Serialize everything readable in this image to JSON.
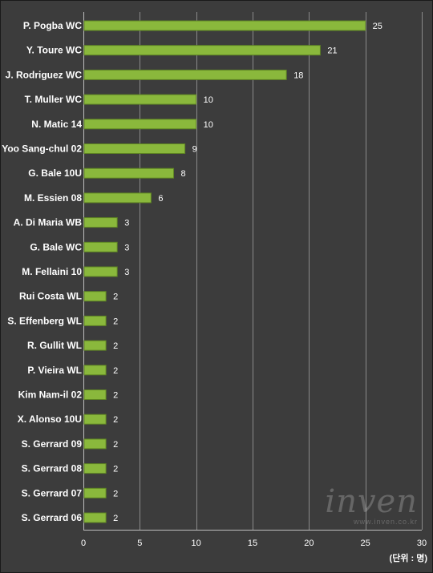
{
  "colors": {
    "background": "#3c3c3c",
    "bar": "#8ab83c",
    "bar_edge": "#5e8423",
    "grid": "#8a8a8a",
    "text": "#ffffff"
  },
  "watermark": {
    "logo": "inven",
    "url": "www.inven.co.kr"
  },
  "chart_data": {
    "type": "bar",
    "orientation": "horizontal",
    "categories": [
      "P. Pogba WC",
      "Y. Toure WC",
      "J. Rodriguez WC",
      "T. Muller WC",
      "N. Matic 14",
      "Yoo Sang-chul 02",
      "G. Bale 10U",
      "M. Essien 08",
      "A. Di Maria WB",
      "G. Bale WC",
      "M. Fellaini 10",
      "Rui Costa WL",
      "S. Effenberg WL",
      "R. Gullit WL",
      "P. Vieira WL",
      "Kim Nam-il 02",
      "X. Alonso 10U",
      "S. Gerrard 09",
      "S. Gerrard 08",
      "S. Gerrard 07",
      "S. Gerrard 06"
    ],
    "values": [
      25,
      21,
      18,
      10,
      10,
      9,
      8,
      6,
      3,
      3,
      3,
      2,
      2,
      2,
      2,
      2,
      2,
      2,
      2,
      2,
      2
    ],
    "xlim": [
      0,
      30
    ],
    "xticks": [
      0,
      5,
      10,
      15,
      20,
      25,
      30
    ],
    "unit_label": "(단위 : 명)",
    "grid": true,
    "data_labels": true
  }
}
